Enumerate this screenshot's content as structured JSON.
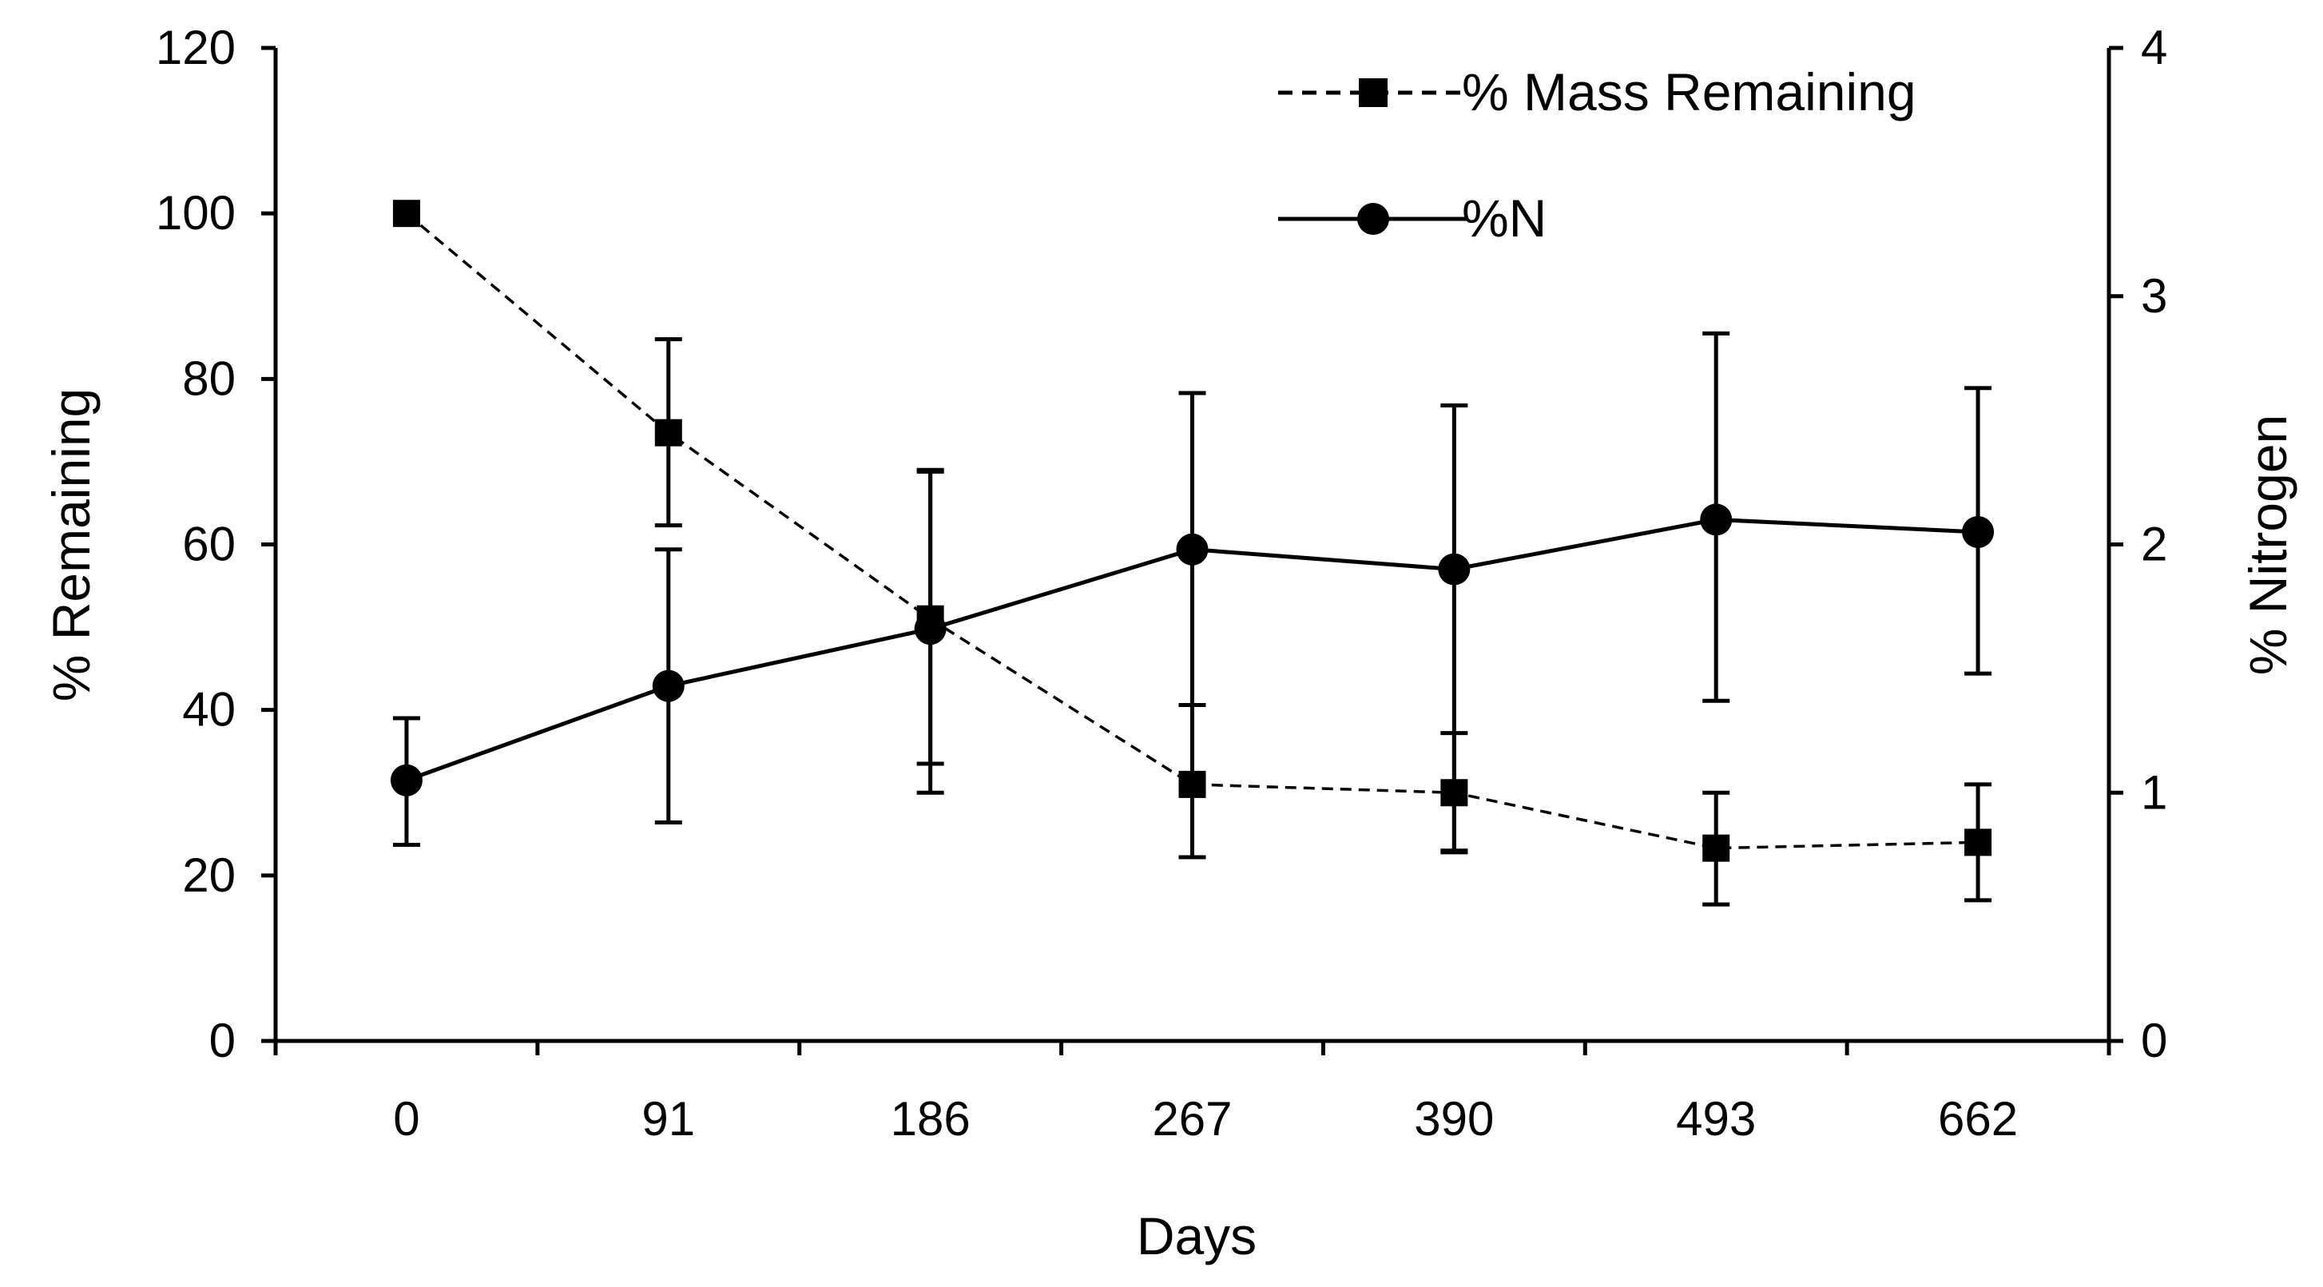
{
  "chart_data": {
    "type": "line",
    "title": "",
    "xlabel": "Days",
    "ylabel": "% Remaining",
    "y2label": "% Nitrogen",
    "categories": [
      "0",
      "91",
      "186",
      "267",
      "390",
      "493",
      "662"
    ],
    "ylim": [
      0,
      120
    ],
    "yticks": [
      0,
      20,
      40,
      60,
      80,
      100,
      120
    ],
    "y2lim": [
      0,
      4
    ],
    "y2ticks": [
      0,
      1,
      2,
      3,
      4
    ],
    "grid": false,
    "legend_position": "top-right",
    "series": [
      {
        "name": "% Mass Remaining",
        "axis": "left",
        "line_style": "dashed",
        "marker": "square",
        "values": [
          100,
          73.5,
          51,
          31,
          30,
          23.3,
          24
        ],
        "error_low": [
          null,
          62.3,
          33.5,
          22.2,
          23,
          16.5,
          17
        ],
        "error_high": [
          null,
          84.8,
          68.8,
          40.6,
          37.2,
          30,
          31
        ]
      },
      {
        "name": "%N",
        "axis": "right",
        "line_style": "solid",
        "marker": "circle",
        "values": [
          1.05,
          1.43,
          1.66,
          1.98,
          1.9,
          2.1,
          2.05
        ],
        "error_low": [
          0.79,
          0.88,
          1.0,
          0.74,
          0.76,
          1.37,
          1.48
        ],
        "error_high": [
          1.3,
          1.98,
          2.3,
          2.61,
          2.56,
          2.85,
          2.63
        ]
      }
    ]
  }
}
